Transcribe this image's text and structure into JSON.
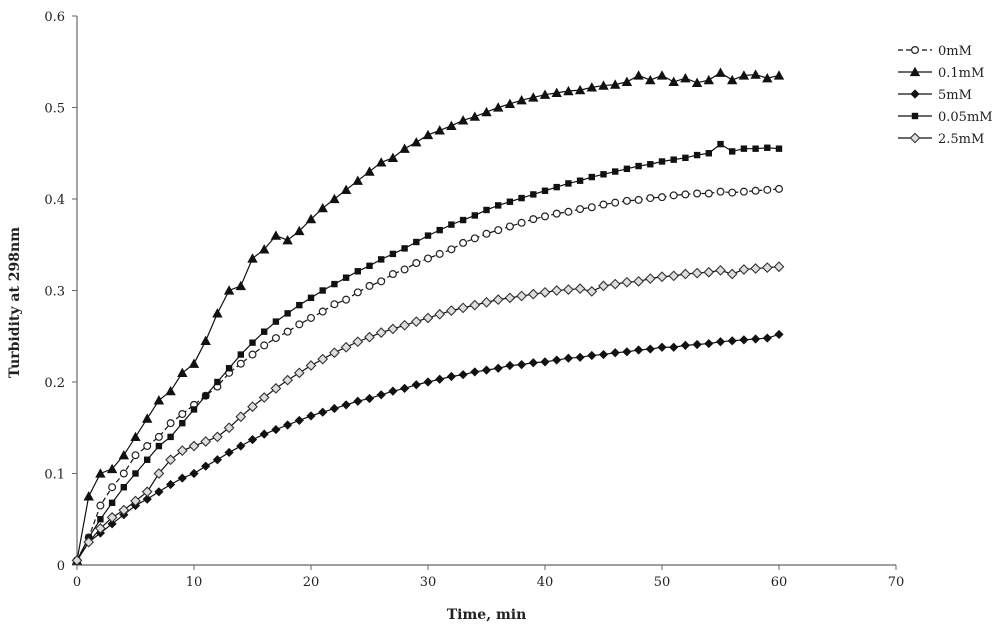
{
  "chart_data": {
    "type": "line",
    "title": "",
    "xlabel": "Time, min",
    "ylabel": "Turbidity at 298nm",
    "xlim": [
      0,
      70
    ],
    "ylim": [
      0,
      0.6
    ],
    "x_ticks": [
      "0",
      "10",
      "20",
      "30",
      "40",
      "50",
      "60",
      "70"
    ],
    "y_ticks": [
      "0",
      "0.1",
      "0.2",
      "0.3",
      "0.4",
      "0.5",
      "0.6"
    ],
    "grid": false,
    "legend_position": "top-right",
    "series": [
      {
        "name": "0mM",
        "marker": "open-circle",
        "line": "dashed",
        "points": [
          [
            0,
            0.005
          ],
          [
            1,
            0.03
          ],
          [
            2,
            0.065
          ],
          [
            3,
            0.085
          ],
          [
            4,
            0.1
          ],
          [
            5,
            0.12
          ],
          [
            6,
            0.13
          ],
          [
            7,
            0.14
          ],
          [
            8,
            0.155
          ],
          [
            9,
            0.165
          ],
          [
            10,
            0.175
          ],
          [
            11,
            0.185
          ],
          [
            12,
            0.195
          ],
          [
            13,
            0.21
          ],
          [
            14,
            0.22
          ],
          [
            15,
            0.23
          ],
          [
            16,
            0.24
          ],
          [
            17,
            0.248
          ],
          [
            18,
            0.255
          ],
          [
            19,
            0.263
          ],
          [
            20,
            0.27
          ],
          [
            21,
            0.277
          ],
          [
            22,
            0.285
          ],
          [
            23,
            0.29
          ],
          [
            24,
            0.298
          ],
          [
            25,
            0.305
          ],
          [
            26,
            0.31
          ],
          [
            27,
            0.318
          ],
          [
            28,
            0.323
          ],
          [
            29,
            0.33
          ],
          [
            30,
            0.335
          ],
          [
            31,
            0.34
          ],
          [
            32,
            0.345
          ],
          [
            33,
            0.352
          ],
          [
            34,
            0.357
          ],
          [
            35,
            0.362
          ],
          [
            36,
            0.366
          ],
          [
            37,
            0.37
          ],
          [
            38,
            0.374
          ],
          [
            39,
            0.378
          ],
          [
            40,
            0.381
          ],
          [
            41,
            0.384
          ],
          [
            42,
            0.386
          ],
          [
            43,
            0.389
          ],
          [
            44,
            0.391
          ],
          [
            45,
            0.394
          ],
          [
            46,
            0.396
          ],
          [
            47,
            0.398
          ],
          [
            48,
            0.399
          ],
          [
            49,
            0.401
          ],
          [
            50,
            0.402
          ],
          [
            51,
            0.404
          ],
          [
            52,
            0.405
          ],
          [
            53,
            0.406
          ],
          [
            54,
            0.406
          ],
          [
            55,
            0.408
          ],
          [
            56,
            0.407
          ],
          [
            57,
            0.408
          ],
          [
            58,
            0.409
          ],
          [
            59,
            0.41
          ],
          [
            60,
            0.411
          ]
        ]
      },
      {
        "name": "0.1mM",
        "marker": "filled-triangle",
        "line": "solid",
        "points": [
          [
            0,
            0.005
          ],
          [
            1,
            0.075
          ],
          [
            2,
            0.1
          ],
          [
            3,
            0.105
          ],
          [
            4,
            0.12
          ],
          [
            5,
            0.14
          ],
          [
            6,
            0.16
          ],
          [
            7,
            0.18
          ],
          [
            8,
            0.19
          ],
          [
            9,
            0.21
          ],
          [
            10,
            0.22
          ],
          [
            11,
            0.245
          ],
          [
            12,
            0.275
          ],
          [
            13,
            0.3
          ],
          [
            14,
            0.305
          ],
          [
            15,
            0.335
          ],
          [
            16,
            0.345
          ],
          [
            17,
            0.36
          ],
          [
            18,
            0.355
          ],
          [
            19,
            0.365
          ],
          [
            20,
            0.378
          ],
          [
            21,
            0.39
          ],
          [
            22,
            0.4
          ],
          [
            23,
            0.41
          ],
          [
            24,
            0.42
          ],
          [
            25,
            0.43
          ],
          [
            26,
            0.44
          ],
          [
            27,
            0.445
          ],
          [
            28,
            0.455
          ],
          [
            29,
            0.462
          ],
          [
            30,
            0.47
          ],
          [
            31,
            0.475
          ],
          [
            32,
            0.48
          ],
          [
            33,
            0.486
          ],
          [
            34,
            0.49
          ],
          [
            35,
            0.495
          ],
          [
            36,
            0.5
          ],
          [
            37,
            0.504
          ],
          [
            38,
            0.508
          ],
          [
            39,
            0.511
          ],
          [
            40,
            0.514
          ],
          [
            41,
            0.516
          ],
          [
            42,
            0.518
          ],
          [
            43,
            0.519
          ],
          [
            44,
            0.522
          ],
          [
            45,
            0.524
          ],
          [
            46,
            0.525
          ],
          [
            47,
            0.528
          ],
          [
            48,
            0.535
          ],
          [
            49,
            0.53
          ],
          [
            50,
            0.535
          ],
          [
            51,
            0.528
          ],
          [
            52,
            0.532
          ],
          [
            53,
            0.527
          ],
          [
            54,
            0.53
          ],
          [
            55,
            0.538
          ],
          [
            56,
            0.53
          ],
          [
            57,
            0.535
          ],
          [
            58,
            0.536
          ],
          [
            59,
            0.532
          ],
          [
            60,
            0.535
          ]
        ]
      },
      {
        "name": "5mM",
        "marker": "filled-diamond",
        "line": "solid",
        "points": [
          [
            0,
            0.005
          ],
          [
            1,
            0.025
          ],
          [
            2,
            0.035
          ],
          [
            3,
            0.045
          ],
          [
            4,
            0.055
          ],
          [
            5,
            0.065
          ],
          [
            6,
            0.072
          ],
          [
            7,
            0.08
          ],
          [
            8,
            0.088
          ],
          [
            9,
            0.095
          ],
          [
            10,
            0.1
          ],
          [
            11,
            0.108
          ],
          [
            12,
            0.115
          ],
          [
            13,
            0.123
          ],
          [
            14,
            0.13
          ],
          [
            15,
            0.137
          ],
          [
            16,
            0.143
          ],
          [
            17,
            0.148
          ],
          [
            18,
            0.153
          ],
          [
            19,
            0.158
          ],
          [
            20,
            0.163
          ],
          [
            21,
            0.167
          ],
          [
            22,
            0.171
          ],
          [
            23,
            0.175
          ],
          [
            24,
            0.179
          ],
          [
            25,
            0.182
          ],
          [
            26,
            0.186
          ],
          [
            27,
            0.19
          ],
          [
            28,
            0.193
          ],
          [
            29,
            0.197
          ],
          [
            30,
            0.2
          ],
          [
            31,
            0.203
          ],
          [
            32,
            0.206
          ],
          [
            33,
            0.208
          ],
          [
            34,
            0.211
          ],
          [
            35,
            0.213
          ],
          [
            36,
            0.215
          ],
          [
            37,
            0.218
          ],
          [
            38,
            0.219
          ],
          [
            39,
            0.221
          ],
          [
            40,
            0.222
          ],
          [
            41,
            0.224
          ],
          [
            42,
            0.226
          ],
          [
            43,
            0.227
          ],
          [
            44,
            0.229
          ],
          [
            45,
            0.23
          ],
          [
            46,
            0.232
          ],
          [
            47,
            0.233
          ],
          [
            48,
            0.235
          ],
          [
            49,
            0.236
          ],
          [
            50,
            0.238
          ],
          [
            51,
            0.238
          ],
          [
            52,
            0.24
          ],
          [
            53,
            0.241
          ],
          [
            54,
            0.242
          ],
          [
            55,
            0.244
          ],
          [
            56,
            0.245
          ],
          [
            57,
            0.246
          ],
          [
            58,
            0.247
          ],
          [
            59,
            0.248
          ],
          [
            60,
            0.252
          ]
        ]
      },
      {
        "name": "0.05mM",
        "marker": "filled-square",
        "line": "solid",
        "points": [
          [
            0,
            0.005
          ],
          [
            1,
            0.03
          ],
          [
            2,
            0.05
          ],
          [
            3,
            0.068
          ],
          [
            4,
            0.085
          ],
          [
            5,
            0.1
          ],
          [
            6,
            0.115
          ],
          [
            7,
            0.13
          ],
          [
            8,
            0.14
          ],
          [
            9,
            0.155
          ],
          [
            10,
            0.17
          ],
          [
            11,
            0.185
          ],
          [
            12,
            0.2
          ],
          [
            13,
            0.215
          ],
          [
            14,
            0.23
          ],
          [
            15,
            0.243
          ],
          [
            16,
            0.255
          ],
          [
            17,
            0.266
          ],
          [
            18,
            0.275
          ],
          [
            19,
            0.284
          ],
          [
            20,
            0.292
          ],
          [
            21,
            0.3
          ],
          [
            22,
            0.307
          ],
          [
            23,
            0.314
          ],
          [
            24,
            0.321
          ],
          [
            25,
            0.327
          ],
          [
            26,
            0.334
          ],
          [
            27,
            0.34
          ],
          [
            28,
            0.346
          ],
          [
            29,
            0.353
          ],
          [
            30,
            0.36
          ],
          [
            31,
            0.366
          ],
          [
            32,
            0.372
          ],
          [
            33,
            0.377
          ],
          [
            34,
            0.382
          ],
          [
            35,
            0.388
          ],
          [
            36,
            0.393
          ],
          [
            37,
            0.397
          ],
          [
            38,
            0.401
          ],
          [
            39,
            0.405
          ],
          [
            40,
            0.409
          ],
          [
            41,
            0.413
          ],
          [
            42,
            0.417
          ],
          [
            43,
            0.42
          ],
          [
            44,
            0.424
          ],
          [
            45,
            0.427
          ],
          [
            46,
            0.43
          ],
          [
            47,
            0.433
          ],
          [
            48,
            0.436
          ],
          [
            49,
            0.438
          ],
          [
            50,
            0.441
          ],
          [
            51,
            0.443
          ],
          [
            52,
            0.445
          ],
          [
            53,
            0.448
          ],
          [
            54,
            0.45
          ],
          [
            55,
            0.46
          ],
          [
            56,
            0.452
          ],
          [
            57,
            0.455
          ],
          [
            58,
            0.455
          ],
          [
            59,
            0.456
          ],
          [
            60,
            0.455
          ]
        ]
      },
      {
        "name": "2.5mM",
        "marker": "open-diamond",
        "line": "solid",
        "points": [
          [
            0,
            0.005
          ],
          [
            1,
            0.025
          ],
          [
            2,
            0.04
          ],
          [
            3,
            0.052
          ],
          [
            4,
            0.06
          ],
          [
            5,
            0.07
          ],
          [
            6,
            0.08
          ],
          [
            7,
            0.1
          ],
          [
            8,
            0.115
          ],
          [
            9,
            0.125
          ],
          [
            10,
            0.13
          ],
          [
            11,
            0.135
          ],
          [
            12,
            0.14
          ],
          [
            13,
            0.15
          ],
          [
            14,
            0.162
          ],
          [
            15,
            0.173
          ],
          [
            16,
            0.183
          ],
          [
            17,
            0.193
          ],
          [
            18,
            0.202
          ],
          [
            19,
            0.21
          ],
          [
            20,
            0.218
          ],
          [
            21,
            0.225
          ],
          [
            22,
            0.232
          ],
          [
            23,
            0.238
          ],
          [
            24,
            0.244
          ],
          [
            25,
            0.249
          ],
          [
            26,
            0.254
          ],
          [
            27,
            0.258
          ],
          [
            28,
            0.262
          ],
          [
            29,
            0.266
          ],
          [
            30,
            0.27
          ],
          [
            31,
            0.274
          ],
          [
            32,
            0.278
          ],
          [
            33,
            0.281
          ],
          [
            34,
            0.284
          ],
          [
            35,
            0.287
          ],
          [
            36,
            0.29
          ],
          [
            37,
            0.292
          ],
          [
            38,
            0.294
          ],
          [
            39,
            0.296
          ],
          [
            40,
            0.298
          ],
          [
            41,
            0.3
          ],
          [
            42,
            0.301
          ],
          [
            43,
            0.302
          ],
          [
            44,
            0.299
          ],
          [
            45,
            0.305
          ],
          [
            46,
            0.307
          ],
          [
            47,
            0.309
          ],
          [
            48,
            0.31
          ],
          [
            49,
            0.313
          ],
          [
            50,
            0.315
          ],
          [
            51,
            0.316
          ],
          [
            52,
            0.318
          ],
          [
            53,
            0.319
          ],
          [
            54,
            0.32
          ],
          [
            55,
            0.322
          ],
          [
            56,
            0.318
          ],
          [
            57,
            0.323
          ],
          [
            58,
            0.324
          ],
          [
            59,
            0.325
          ],
          [
            60,
            0.326
          ]
        ]
      }
    ]
  }
}
